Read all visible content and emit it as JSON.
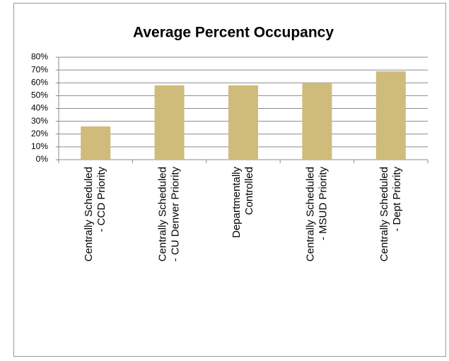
{
  "chart_data": {
    "type": "bar",
    "title": "Average Percent Occupancy",
    "categories": [
      "Centrally Scheduled\n- CCD Priority",
      "Centrally Scheduled\n- CU Denver Priority",
      "Departmentally\nControlled",
      "Centrally Scheduled\n- MSUD Priority",
      "Centrally Scheduled\n- Dept Priority"
    ],
    "values": [
      26,
      58,
      58,
      60,
      69
    ],
    "color": "#cfbb7c",
    "ylim": [
      0,
      80
    ],
    "yticks": [
      {
        "value": 0,
        "label": "0%"
      },
      {
        "value": 10,
        "label": "10%"
      },
      {
        "value": 20,
        "label": "20%"
      },
      {
        "value": 30,
        "label": "30%"
      },
      {
        "value": 40,
        "label": "40%"
      },
      {
        "value": 50,
        "label": "50%"
      },
      {
        "value": 60,
        "label": "60%"
      },
      {
        "value": 70,
        "label": "70%"
      },
      {
        "value": 80,
        "label": "80%"
      }
    ],
    "grid": true
  }
}
